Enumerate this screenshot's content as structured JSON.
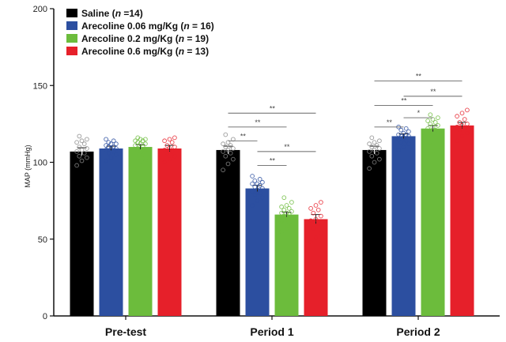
{
  "chart_data": {
    "type": "bar",
    "ylabel": "MAP (mmHg)",
    "ylim": [
      0,
      200
    ],
    "yticks": [
      "0",
      "50",
      "100",
      "150",
      "200"
    ],
    "categories": [
      "Pre-test",
      "Period 1",
      "Period 2"
    ],
    "legend_position": "top-left",
    "series": [
      {
        "name": "Saline (n =14)",
        "name_parts": {
          "before": "Saline (",
          "n": "n",
          "after": " =14)"
        },
        "color": "#000000",
        "values": [
          107,
          108,
          108
        ],
        "errors": [
          2.5,
          2.5,
          2.5
        ],
        "points": [
          [
            98,
            101,
            103,
            104,
            106,
            107,
            108,
            109,
            110,
            112,
            113,
            114,
            115,
            117
          ],
          [
            95,
            99,
            102,
            104,
            106,
            107,
            108,
            109,
            110,
            111,
            112,
            113,
            115,
            118
          ],
          [
            96,
            100,
            102,
            104,
            106,
            107,
            108,
            109,
            110,
            111,
            112,
            113,
            114,
            116
          ]
        ]
      },
      {
        "name": "Arecoline 0.06 mg/Kg (n = 16)",
        "name_parts": {
          "before": "Arecoline 0.06 mg/Kg (",
          "n": "n",
          "after": " = 16)"
        },
        "color": "#2c4fa0",
        "values": [
          109,
          83,
          117
        ],
        "errors": [
          1.5,
          2,
          1.5
        ],
        "points": [
          [
            101,
            103,
            105,
            106,
            107,
            108,
            109,
            109,
            110,
            110,
            111,
            112,
            112,
            113,
            114,
            115
          ],
          [
            72,
            75,
            77,
            79,
            80,
            81,
            82,
            83,
            84,
            85,
            86,
            86,
            87,
            88,
            89,
            91
          ],
          [
            108,
            110,
            112,
            113,
            114,
            115,
            116,
            117,
            117,
            118,
            118,
            119,
            120,
            121,
            122,
            123
          ]
        ]
      },
      {
        "name": "Arecoline 0.2 mg/Kg (n = 19)",
        "name_parts": {
          "before": "Arecoline 0.2 mg/Kg (",
          "n": "n",
          "after": " = 19)"
        },
        "color": "#6cbc3c",
        "values": [
          110,
          66,
          122
        ],
        "errors": [
          1.5,
          1.5,
          2
        ],
        "points": [
          [
            95,
            98,
            101,
            103,
            105,
            106,
            107,
            108,
            109,
            110,
            111,
            112,
            112,
            113,
            114,
            114,
            115,
            115,
            116
          ],
          [
            55,
            57,
            59,
            60,
            61,
            62,
            63,
            64,
            65,
            66,
            67,
            67,
            68,
            69,
            70,
            71,
            72,
            74,
            77
          ],
          [
            104,
            107,
            110,
            113,
            115,
            117,
            118,
            119,
            120,
            121,
            122,
            123,
            124,
            125,
            126,
            127,
            128,
            129,
            131
          ]
        ]
      },
      {
        "name": "Arecoline 0.6 mg/Kg (n = 13)",
        "name_parts": {
          "before": "Arecoline 0.6 mg/Kg (",
          "n": "n",
          "after": " = 13)"
        },
        "color": "#e6202a",
        "values": [
          109,
          63,
          124
        ],
        "errors": [
          2,
          3,
          2
        ],
        "points": [
          [
            100,
            102,
            104,
            106,
            107,
            108,
            109,
            110,
            111,
            113,
            114,
            115,
            116
          ],
          [
            48,
            51,
            54,
            57,
            60,
            62,
            63,
            65,
            67,
            69,
            70,
            72,
            74
          ],
          [
            114,
            117,
            119,
            121,
            122,
            123,
            124,
            125,
            126,
            128,
            130,
            132,
            134
          ]
        ]
      }
    ],
    "significance": [
      {
        "group": 1,
        "from": 0,
        "to": 3,
        "y": 132,
        "label": "**"
      },
      {
        "group": 1,
        "from": 0,
        "to": 2,
        "y": 123,
        "label": "**"
      },
      {
        "group": 1,
        "from": 0,
        "to": 1,
        "y": 114,
        "label": "**"
      },
      {
        "group": 1,
        "from": 1,
        "to": 3,
        "y": 107,
        "label": "**"
      },
      {
        "group": 1,
        "from": 1,
        "to": 2,
        "y": 98,
        "label": "**"
      },
      {
        "group": 2,
        "from": 0,
        "to": 3,
        "y": 153,
        "label": "**"
      },
      {
        "group": 2,
        "from": 1,
        "to": 3,
        "y": 143,
        "label": "**"
      },
      {
        "group": 2,
        "from": 0,
        "to": 2,
        "y": 137,
        "label": "**"
      },
      {
        "group": 2,
        "from": 1,
        "to": 2,
        "y": 129,
        "label": "*"
      },
      {
        "group": 2,
        "from": 0,
        "to": 1,
        "y": 123,
        "label": "**"
      }
    ]
  }
}
